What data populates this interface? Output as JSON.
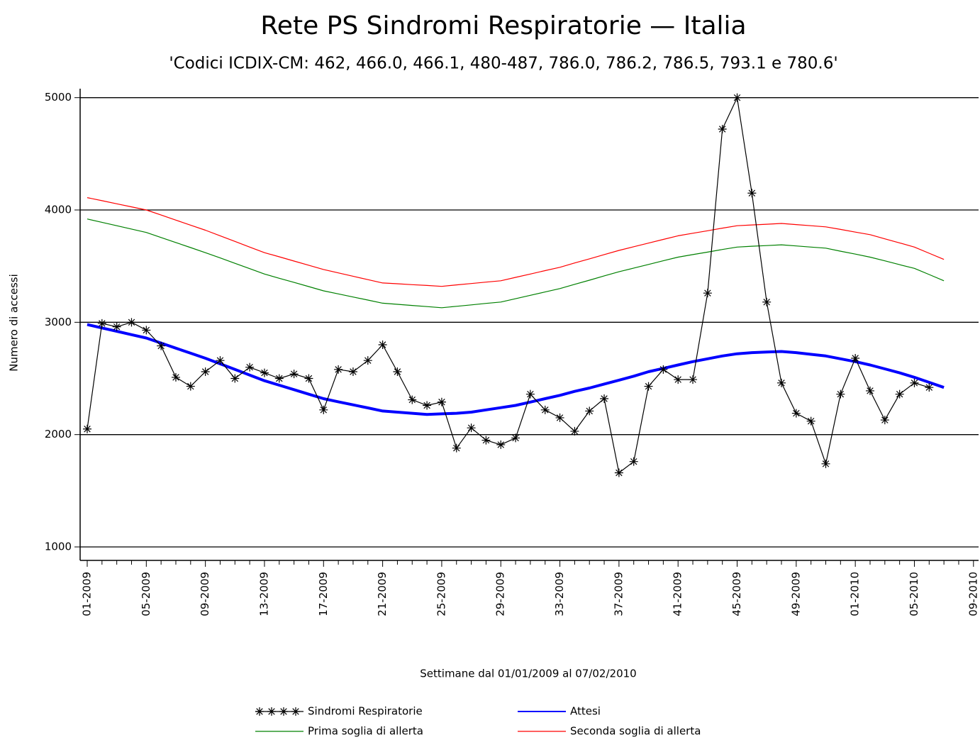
{
  "chart_data": {
    "type": "line",
    "title": "Rete PS Sindromi Respiratorie — Italia",
    "subtitle": "'Codici ICDIX-CM: 462, 466.0, 466.1, 480-487, 786.0, 786.2, 786.5, 793.1 e 780.6'",
    "x_label": "Settimane dal 01/01/2009 al 07/02/2010",
    "y_label": "Numero di accessi",
    "categories": [
      "01-2009",
      null,
      null,
      null,
      "05-2009",
      null,
      null,
      null,
      "09-2009",
      null,
      null,
      null,
      "13-2009",
      null,
      null,
      null,
      "17-2009",
      null,
      null,
      null,
      "21-2009",
      null,
      null,
      null,
      "25-2009",
      null,
      null,
      null,
      "29-2009",
      null,
      null,
      null,
      "33-2009",
      null,
      null,
      null,
      "37-2009",
      null,
      null,
      null,
      "41-2009",
      null,
      null,
      null,
      "45-2009",
      null,
      null,
      null,
      "49-2009",
      null,
      null,
      null,
      "01-2010",
      null,
      null,
      null,
      "05-2010",
      null,
      null,
      null,
      "09-2010"
    ],
    "ylim": [
      880,
      5080
    ],
    "yticks": [
      1000,
      2000,
      3000,
      4000,
      5000
    ],
    "grid": true,
    "series": [
      {
        "name": "Sindromi Respiratorie",
        "color": "#000000",
        "marker": "asterisk",
        "values": [
          2050,
          2990,
          2960,
          3000,
          2930,
          2790,
          2510,
          2430,
          2560,
          2660,
          2500,
          2600,
          2550,
          2500,
          2540,
          2500,
          2220,
          2580,
          2560,
          2660,
          2800,
          2560,
          2310,
          2260,
          2290,
          1880,
          2060,
          1950,
          1910,
          1970,
          2360,
          2220,
          2150,
          2030,
          2210,
          2320,
          1660,
          1760,
          2430,
          2580,
          2490,
          2490,
          3260,
          4720,
          5000,
          4150,
          3180,
          2460,
          2190,
          2120,
          1740,
          2360,
          2680,
          2390,
          2130,
          2360,
          2460,
          2420,
          null,
          null,
          null
        ]
      },
      {
        "name": "Attesi",
        "color": "#0000ff",
        "width": 4,
        "values": [
          2980,
          2950,
          2920,
          2890,
          2860,
          2815,
          2770,
          2725,
          2680,
          2630,
          2580,
          2530,
          2480,
          2440,
          2400,
          2360,
          2320,
          2292,
          2265,
          2238,
          2210,
          2200,
          2190,
          2180,
          2185,
          2190,
          2200,
          2220,
          2240,
          2260,
          2290,
          2320,
          2350,
          2385,
          2415,
          2450,
          2485,
          2520,
          2560,
          2590,
          2620,
          2650,
          2675,
          2700,
          2720,
          2730,
          2735,
          2740,
          2730,
          2715,
          2700,
          2675,
          2650,
          2620,
          2585,
          2550,
          2510,
          2465,
          2420,
          null,
          null
        ]
      },
      {
        "name": "Prima soglia di allerta",
        "color": "#008000",
        "width": 1.2,
        "values": [
          3920,
          3890,
          3860,
          3830,
          3800,
          3755,
          3710,
          3665,
          3620,
          3573,
          3525,
          3478,
          3430,
          3392,
          3355,
          3318,
          3280,
          3253,
          3225,
          3198,
          3170,
          3160,
          3150,
          3140,
          3130,
          3142,
          3155,
          3168,
          3180,
          3210,
          3240,
          3270,
          3300,
          3338,
          3375,
          3413,
          3450,
          3483,
          3515,
          3548,
          3580,
          3603,
          3625,
          3648,
          3670,
          3677,
          3683,
          3690,
          3680,
          3670,
          3660,
          3633,
          3607,
          3580,
          3547,
          3513,
          3480,
          3425,
          3370,
          null,
          null
        ]
      },
      {
        "name": "Seconda soglia di allerta",
        "color": "#ff0000",
        "width": 1.2,
        "values": [
          4110,
          4083,
          4055,
          4028,
          4000,
          3955,
          3910,
          3865,
          3820,
          3770,
          3720,
          3670,
          3620,
          3583,
          3545,
          3508,
          3470,
          3440,
          3410,
          3380,
          3350,
          3343,
          3335,
          3328,
          3320,
          3333,
          3345,
          3358,
          3370,
          3400,
          3430,
          3460,
          3490,
          3528,
          3565,
          3603,
          3640,
          3673,
          3705,
          3738,
          3770,
          3793,
          3815,
          3838,
          3860,
          3867,
          3873,
          3880,
          3870,
          3860,
          3850,
          3827,
          3803,
          3780,
          3743,
          3707,
          3670,
          3615,
          3560,
          null,
          null
        ]
      }
    ]
  }
}
